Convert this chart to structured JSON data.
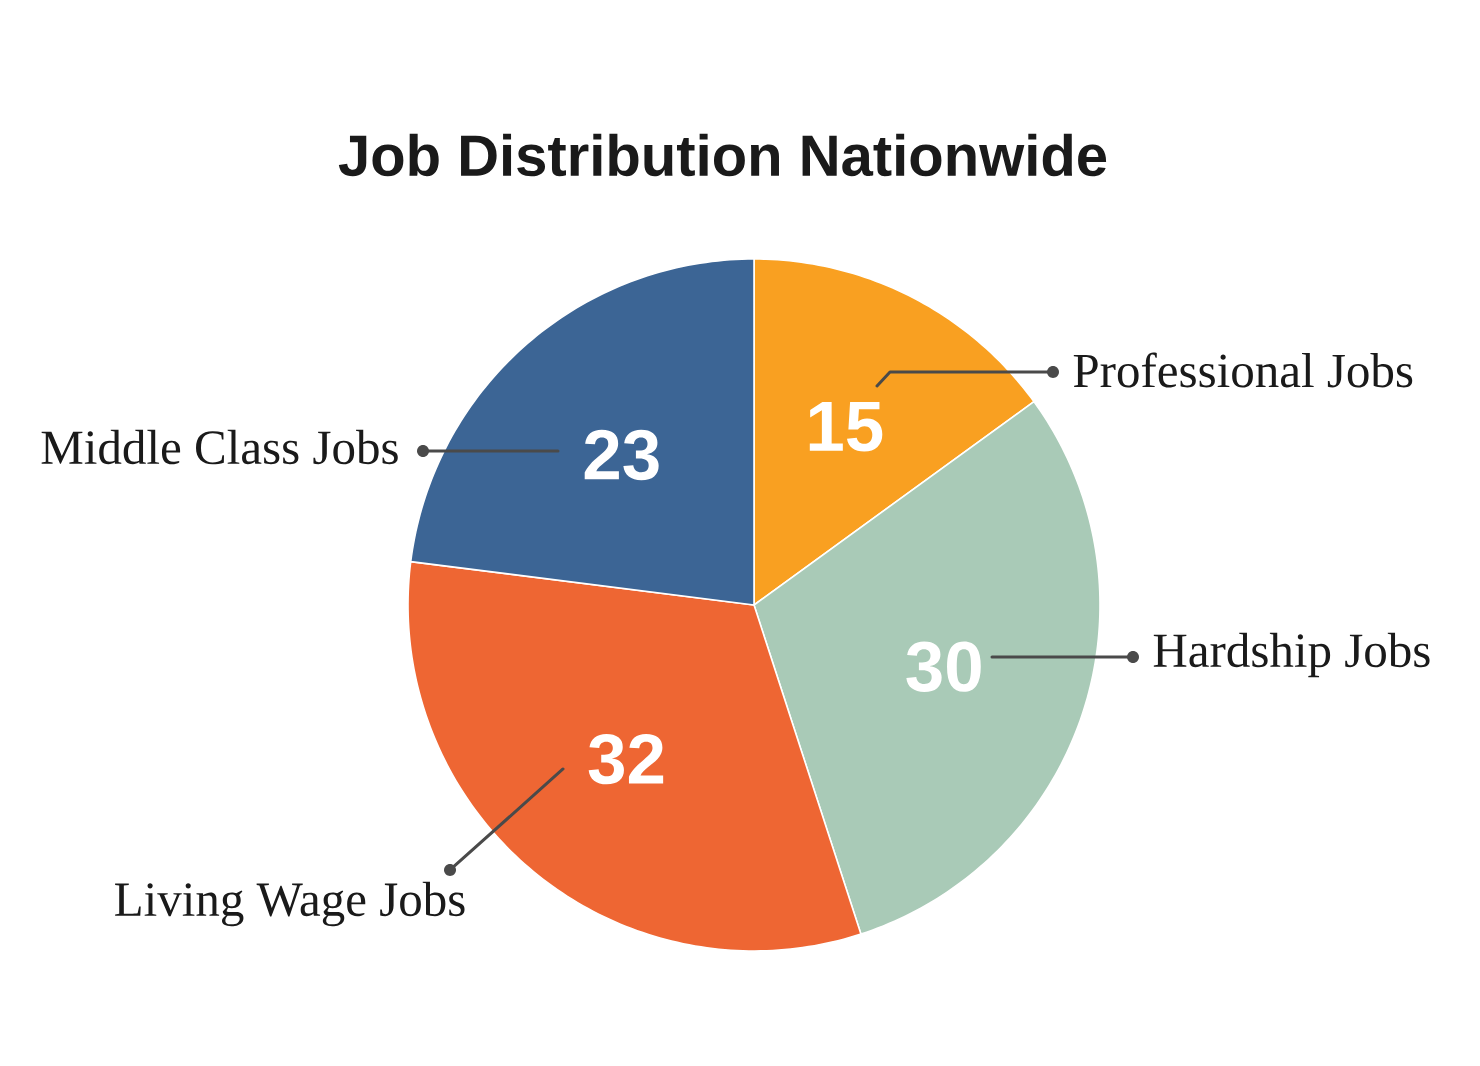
{
  "chart_data": {
    "type": "pie",
    "title": "Job Distribution Nationwide",
    "categories": [
      "Professional Jobs",
      "Hardship Jobs",
      "Living Wage Jobs",
      "Middle Class Jobs"
    ],
    "values": [
      15,
      30,
      32,
      23
    ],
    "colors": [
      "#f9a021",
      "#a9cab7",
      "#ee6633",
      "#3c6595"
    ],
    "data_labels": true
  }
}
